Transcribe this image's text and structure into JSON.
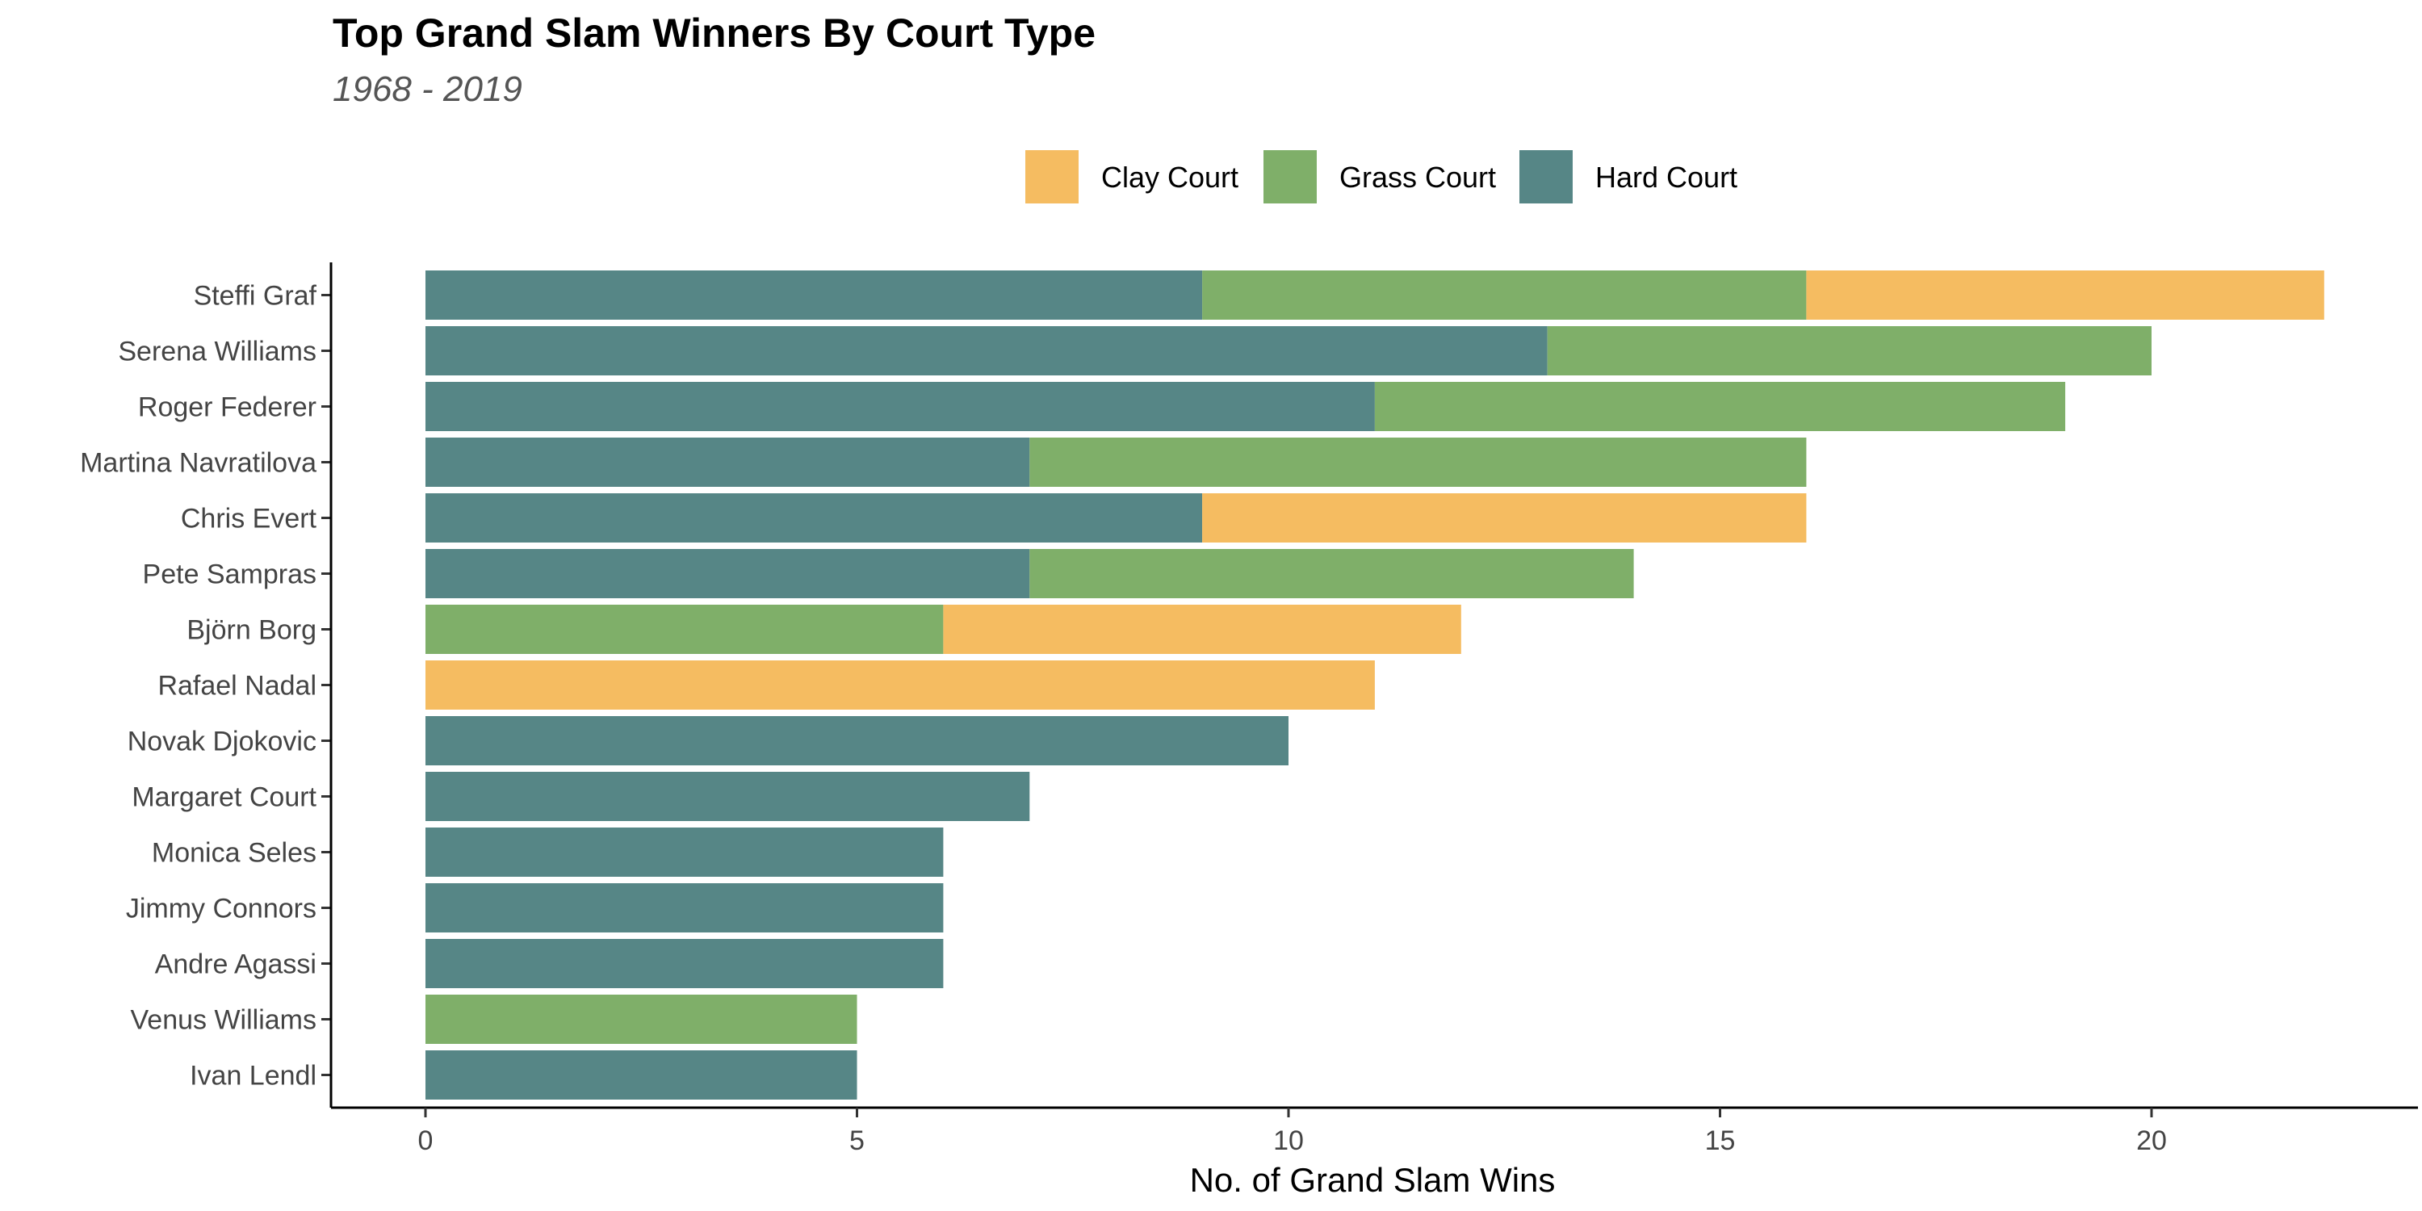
{
  "colors": {
    "clay": "#F5BC61",
    "grass": "#7FAF69",
    "hard": "#568686"
  },
  "chart_data": {
    "type": "bar",
    "orientation": "horizontal",
    "stacked": true,
    "title": "Top Grand Slam Winners By Court Type",
    "subtitle": "1968 - 2019",
    "xlabel": "No. of Grand Slam Wins",
    "ylabel": "",
    "xlim": [
      -1.1,
      23.1
    ],
    "xticks": [
      0,
      5,
      10,
      15,
      20
    ],
    "grid": false,
    "legend_position": "top",
    "categories": [
      "Steffi Graf",
      "Serena Williams",
      "Roger Federer",
      "Martina Navratilova",
      "Chris Evert",
      "Pete Sampras",
      "Björn Borg",
      "Rafael Nadal",
      "Novak Djokovic",
      "Margaret Court",
      "Monica Seles",
      "Jimmy Connors",
      "Andre Agassi",
      "Venus Williams",
      "Ivan Lendl"
    ],
    "series": [
      {
        "name": "Hard Court",
        "color_key": "hard",
        "values": [
          9,
          13,
          11,
          7,
          9,
          7,
          0,
          0,
          10,
          7,
          6,
          6,
          6,
          0,
          5
        ]
      },
      {
        "name": "Grass Court",
        "color_key": "grass",
        "values": [
          7,
          7,
          8,
          9,
          0,
          7,
          6,
          0,
          0,
          0,
          0,
          0,
          0,
          5,
          0
        ]
      },
      {
        "name": "Clay Court",
        "color_key": "clay",
        "values": [
          6,
          0,
          0,
          0,
          7,
          0,
          6,
          11,
          0,
          0,
          0,
          0,
          0,
          0,
          0
        ]
      }
    ],
    "legend_order": [
      "Clay Court",
      "Grass Court",
      "Hard Court"
    ]
  }
}
